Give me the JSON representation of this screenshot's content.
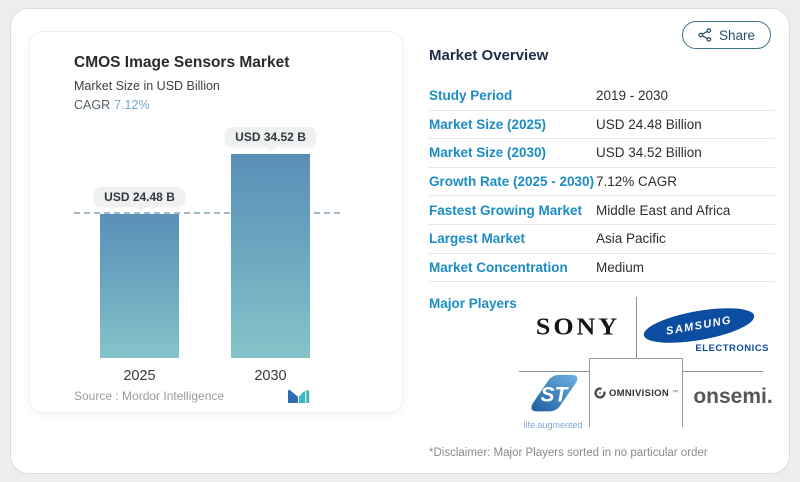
{
  "share": {
    "label": "Share",
    "icon": "share-nodes-icon"
  },
  "chart_panel": {
    "title": "CMOS Image Sensors Market",
    "subtitle": "Market Size in USD Billion",
    "cagr_label": "CAGR",
    "cagr_value": "7.12%",
    "source_label": "Source :  Mordor Intelligence",
    "logo": "mordor-intelligence-logo"
  },
  "chart_data": {
    "type": "bar",
    "title": "CMOS Image Sensors Market",
    "subtitle": "Market Size in USD Billion",
    "categories": [
      "2025",
      "2030"
    ],
    "values": [
      24.48,
      34.52
    ],
    "value_labels": [
      "USD 24.48 B",
      "USD 34.52 B"
    ],
    "unit": "USD Billion",
    "cagr": "7.12%",
    "ylim": [
      0,
      36
    ],
    "reference_line_at": 24.48,
    "grid": "off",
    "bar_gradient": [
      "#5a8fb8",
      "#84c4c9"
    ]
  },
  "overview": {
    "title": "Market Overview",
    "rows": [
      {
        "label": "Study Period",
        "value": "2019 - 2030"
      },
      {
        "label": "Market Size (2025)",
        "value": "USD 24.48 Billion"
      },
      {
        "label": "Market Size (2030)",
        "value": "USD 34.52 Billion"
      },
      {
        "label": "Growth Rate (2025 - 2030)",
        "value": "7.12% CAGR"
      },
      {
        "label": "Fastest Growing Market",
        "value": "Middle East and Africa"
      },
      {
        "label": "Largest Market",
        "value": "Asia Pacific"
      },
      {
        "label": "Market Concentration",
        "value": "Medium"
      }
    ]
  },
  "major_players": {
    "label": "Major Players",
    "players": [
      "Sony",
      "Samsung Electronics",
      "STMicroelectronics",
      "OmniVision",
      "onsemi"
    ],
    "logos": {
      "sony": "SONY",
      "samsung_top": "SAMSUNG",
      "samsung_bottom": "ELECTRONICS",
      "st_caption": "life.augmented",
      "omnivision": "OMNIVISION",
      "omnivision_tm": "™",
      "onsemi": "onsemi."
    },
    "disclaimer": "*Disclaimer: Major Players sorted in no particular order"
  },
  "colors": {
    "accent_blue": "#1b8dc4",
    "heading_navy": "#1c2e4a",
    "cagr_light_blue": "#74a7cc",
    "bar_top": "#5a8fb8",
    "bar_bottom": "#84c4c9",
    "samsung_blue": "#0c4da2",
    "share_teal": "#27506b"
  }
}
